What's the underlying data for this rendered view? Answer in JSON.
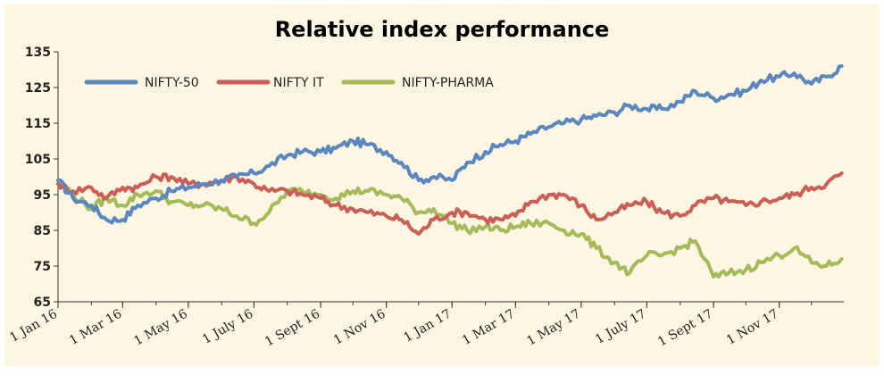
{
  "chart_data": {
    "type": "line",
    "title": "Relative index performance",
    "xlabel": "",
    "ylabel": "",
    "ylim": [
      65,
      135
    ],
    "yticks": [
      65,
      75,
      85,
      95,
      105,
      115,
      125,
      135
    ],
    "xticks": [
      "1 Jan 16",
      "1 Mar 16",
      "1 May 16",
      "1 July 16",
      "1 Sept 16",
      "1 Nov 16",
      "1 Jan 17",
      "1 Mar 17",
      "1 May 17",
      "1 July 17",
      "1 Sept 17",
      "1 Nov 17"
    ],
    "grid": false,
    "legend": "top-left",
    "x": [
      "2016-01-01",
      "2016-01-15",
      "2016-02-01",
      "2016-02-15",
      "2016-03-01",
      "2016-03-15",
      "2016-04-01",
      "2016-04-15",
      "2016-05-01",
      "2016-05-15",
      "2016-06-01",
      "2016-06-15",
      "2016-07-01",
      "2016-07-15",
      "2016-08-01",
      "2016-08-15",
      "2016-09-01",
      "2016-09-15",
      "2016-10-01",
      "2016-10-15",
      "2016-11-01",
      "2016-11-15",
      "2016-12-01",
      "2016-12-15",
      "2017-01-01",
      "2017-01-15",
      "2017-02-01",
      "2017-02-15",
      "2017-03-01",
      "2017-03-15",
      "2017-04-01",
      "2017-04-15",
      "2017-05-01",
      "2017-05-15",
      "2017-06-01",
      "2017-06-15",
      "2017-07-01",
      "2017-07-15",
      "2017-08-01",
      "2017-08-15",
      "2017-09-01",
      "2017-09-15",
      "2017-10-01",
      "2017-10-15",
      "2017-11-01",
      "2017-11-15",
      "2017-12-01",
      "2017-12-15",
      "2017-12-29"
    ],
    "series": [
      {
        "name": "NIFTY-50",
        "color": "#5b87c1",
        "values": [
          99,
          94,
          92,
          88,
          88,
          92,
          94,
          96,
          97,
          98,
          99,
          100,
          101,
          103,
          106,
          107,
          107,
          108,
          110,
          109,
          107,
          104,
          99,
          100,
          99,
          104,
          107,
          109,
          110,
          112,
          114,
          115,
          116,
          117,
          118,
          120,
          119,
          119,
          121,
          124,
          122,
          123,
          124,
          127,
          128,
          129,
          126,
          128,
          131
        ]
      },
      {
        "name": "NIFTY IT",
        "color": "#cc5f55",
        "values": [
          98,
          96,
          97,
          94,
          97,
          97,
          100,
          100,
          98,
          98,
          99,
          100,
          98,
          96,
          96,
          95,
          94,
          92,
          91,
          90,
          89,
          88,
          84,
          88,
          90,
          90,
          88,
          88,
          89,
          93,
          95,
          95,
          92,
          88,
          90,
          92,
          93,
          90,
          89,
          92,
          94,
          93,
          92,
          93,
          94,
          95,
          97,
          98,
          101
        ]
      },
      {
        "name": "NIFTY-PHARMA",
        "color": "#a4bb5a",
        "values": [
          99,
          95,
          91,
          94,
          92,
          95,
          96,
          93,
          92,
          92,
          91,
          89,
          87,
          90,
          96,
          96,
          95,
          94,
          96,
          96,
          95,
          94,
          90,
          91,
          87,
          85,
          86,
          85,
          86,
          87,
          87,
          85,
          84,
          80,
          76,
          73,
          78,
          78,
          80,
          82,
          72,
          73,
          74,
          76,
          78,
          80,
          76,
          75,
          77
        ]
      }
    ]
  }
}
